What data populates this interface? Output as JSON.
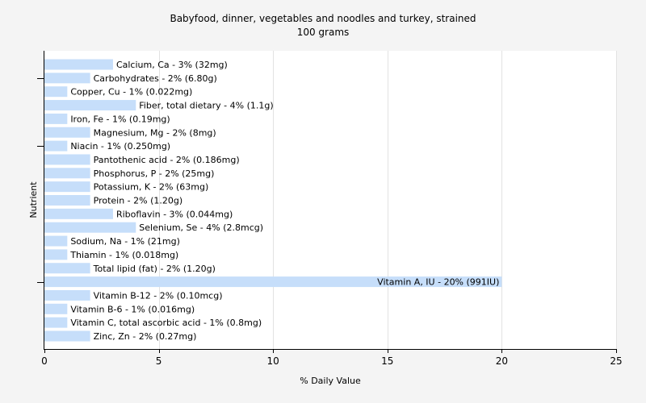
{
  "chart_data": {
    "type": "bar",
    "orientation": "horizontal",
    "title": "Babyfood, dinner, vegetables and noodles and turkey, strained",
    "subtitle": "100 grams",
    "xlabel": "% Daily Value",
    "ylabel": "Nutrient",
    "xlim": [
      0,
      25
    ],
    "xticks": [
      0,
      5,
      10,
      15,
      20,
      25
    ],
    "grid": true,
    "bar_color": "#c6defa",
    "categories": [
      "Calcium, Ca",
      "Carbohydrates",
      "Copper, Cu",
      "Fiber, total dietary",
      "Iron, Fe",
      "Magnesium, Mg",
      "Niacin",
      "Pantothenic acid",
      "Phosphorus, P",
      "Potassium, K",
      "Protein",
      "Riboflavin",
      "Selenium, Se",
      "Sodium, Na",
      "Thiamin",
      "Total lipid (fat)",
      "Vitamin A, IU",
      "Vitamin B-12",
      "Vitamin B-6",
      "Vitamin C, total ascorbic acid",
      "Zinc, Zn"
    ],
    "values": [
      3,
      2,
      1,
      4,
      1,
      2,
      1,
      2,
      2,
      2,
      2,
      3,
      4,
      1,
      1,
      2,
      20,
      2,
      1,
      1,
      2
    ],
    "labels": [
      "Calcium, Ca - 3% (32mg)",
      "Carbohydrates - 2% (6.80g)",
      "Copper, Cu - 1% (0.022mg)",
      "Fiber, total dietary - 4% (1.1g)",
      "Iron, Fe - 1% (0.19mg)",
      "Magnesium, Mg - 2% (8mg)",
      "Niacin - 1% (0.250mg)",
      "Pantothenic acid - 2% (0.186mg)",
      "Phosphorus, P - 2% (25mg)",
      "Potassium, K - 2% (63mg)",
      "Protein - 2% (1.20g)",
      "Riboflavin - 3% (0.044mg)",
      "Selenium, Se - 4% (2.8mcg)",
      "Sodium, Na - 1% (21mg)",
      "Thiamin - 1% (0.018mg)",
      "Total lipid (fat) - 2% (1.20g)",
      "Vitamin A, IU - 20% (991IU)",
      "Vitamin B-12 - 2% (0.10mcg)",
      "Vitamin B-6 - 1% (0.016mg)",
      "Vitamin C, total ascorbic acid - 1% (0.8mg)",
      "Zinc, Zn - 2% (0.27mg)"
    ]
  }
}
